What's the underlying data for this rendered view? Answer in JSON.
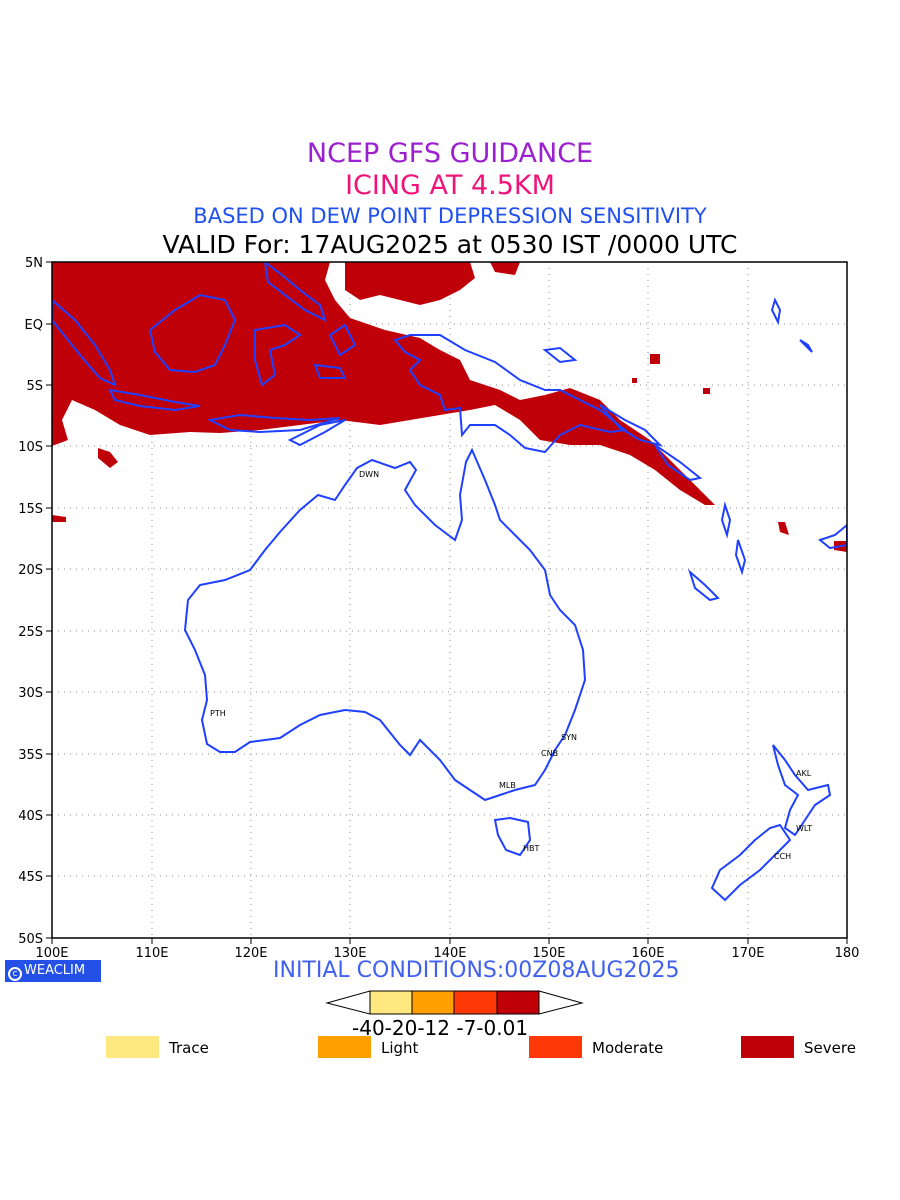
{
  "titles": {
    "line1": "NCEP GFS GUIDANCE",
    "line2": "ICING AT 4.5KM",
    "line3": "BASED ON DEW POINT DEPRESSION SENSITIVITY",
    "line4": "VALID For: 17AUG2025 at 0530 IST /0000 UTC"
  },
  "axes": {
    "lat_labels": [
      "5N",
      "EQ",
      "5S",
      "10S",
      "15S",
      "20S",
      "25S",
      "30S",
      "35S",
      "40S",
      "45S",
      "50S"
    ],
    "lon_labels": [
      "100E",
      "110E",
      "120E",
      "130E",
      "140E",
      "150E",
      "160E",
      "170E",
      "180"
    ],
    "lat_range": [
      -50,
      5
    ],
    "lon_range": [
      100,
      180
    ],
    "grid": "dotted"
  },
  "cities": [
    "DWN",
    "PTH",
    "SYN",
    "CNB",
    "MLB",
    "HBT",
    "AKL",
    "WLT",
    "CCH"
  ],
  "logo": {
    "text": "WEACLIM",
    "icon": "copyright-circle-icon"
  },
  "initial_conditions": "INITIAL CONDITIONS:00Z08AUG2025",
  "colorbar": {
    "labels": "-40-20-12 -7-0.01",
    "colors": [
      "#ffe880",
      "#ffa000",
      "#ff3808",
      "#c00008"
    ]
  },
  "legend": [
    {
      "label": "Trace",
      "color": "#ffe880"
    },
    {
      "label": "Light",
      "color": "#ffa000"
    },
    {
      "label": "Moderate",
      "color": "#ff3808"
    },
    {
      "label": "Severe",
      "color": "#c00008"
    }
  ],
  "colors": {
    "coast": "#2040ff",
    "icing_severe": "#c00008"
  }
}
